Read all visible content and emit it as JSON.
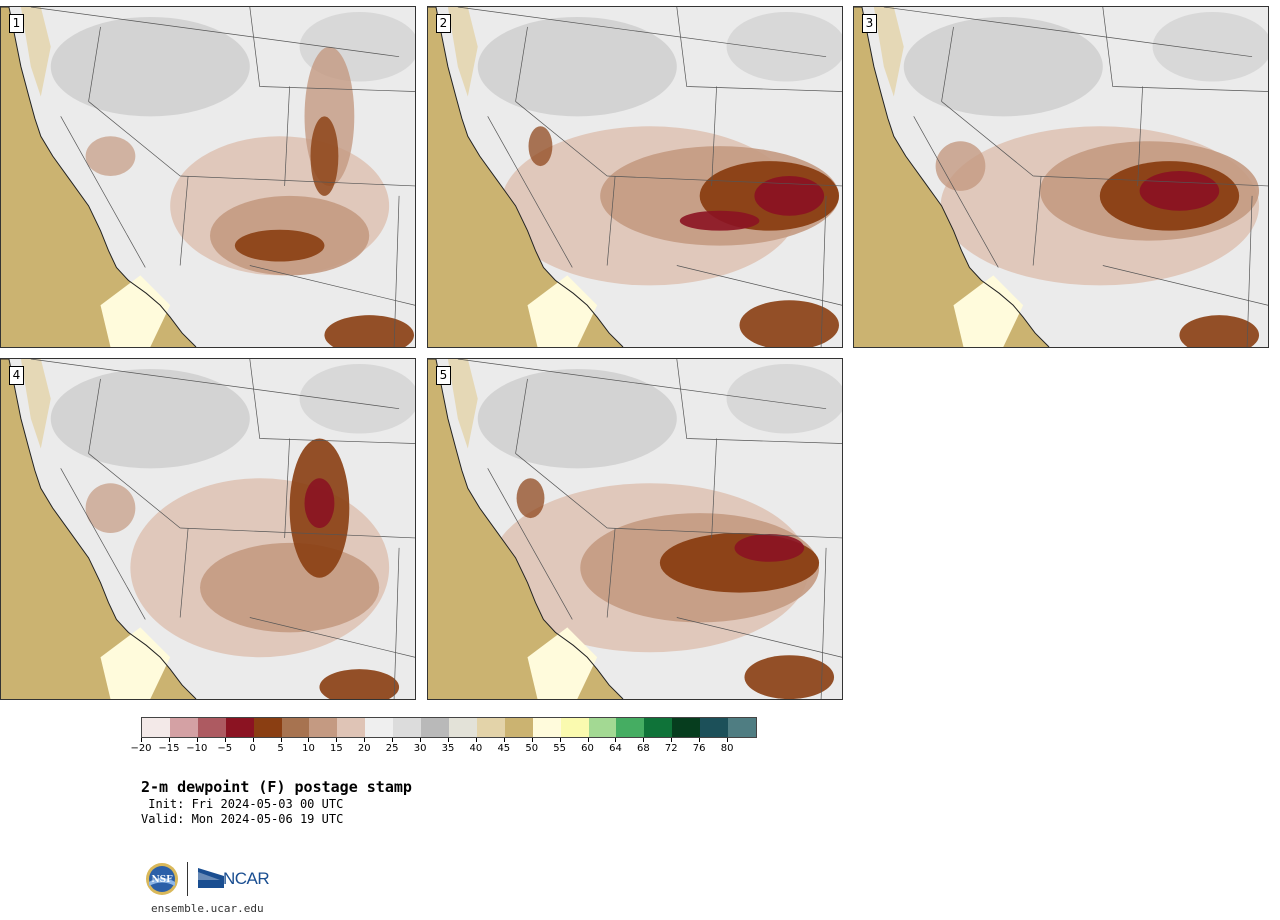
{
  "figure": {
    "title": "2-m dewpoint (F) postage stamp",
    "init_text": " Init: Fri 2024-05-03 00 UTC",
    "valid_text": "Valid: Mon 2024-05-06 19 UTC",
    "website": "ensemble.ucar.edu",
    "logo_text": "NCAR"
  },
  "panels": [
    {
      "label": "1"
    },
    {
      "label": "2"
    },
    {
      "label": "3"
    },
    {
      "label": "4"
    },
    {
      "label": "5"
    }
  ],
  "colorbar": {
    "tick_labels": [
      "−20",
      "−15",
      "−10",
      "−5",
      "0",
      "5",
      "10",
      "15",
      "20",
      "25",
      "30",
      "35",
      "40",
      "45",
      "50",
      "55",
      "60",
      "64",
      "68",
      "72",
      "76",
      "80"
    ],
    "colors": [
      "#f3e9e8",
      "#d4a1a4",
      "#ad5a61",
      "#8b1322",
      "#8a3e12",
      "#a77350",
      "#c49a82",
      "#dfc4b6",
      "#efefef",
      "#dcdcdc",
      "#b9b9b9",
      "#e3e2d8",
      "#e3d3a9",
      "#cbb371",
      "#fffbdc",
      "#fafaaf",
      "#a3d993",
      "#45ad62",
      "#0f7339",
      "#063d1e",
      "#1c5059",
      "#4f7d82"
    ]
  }
}
